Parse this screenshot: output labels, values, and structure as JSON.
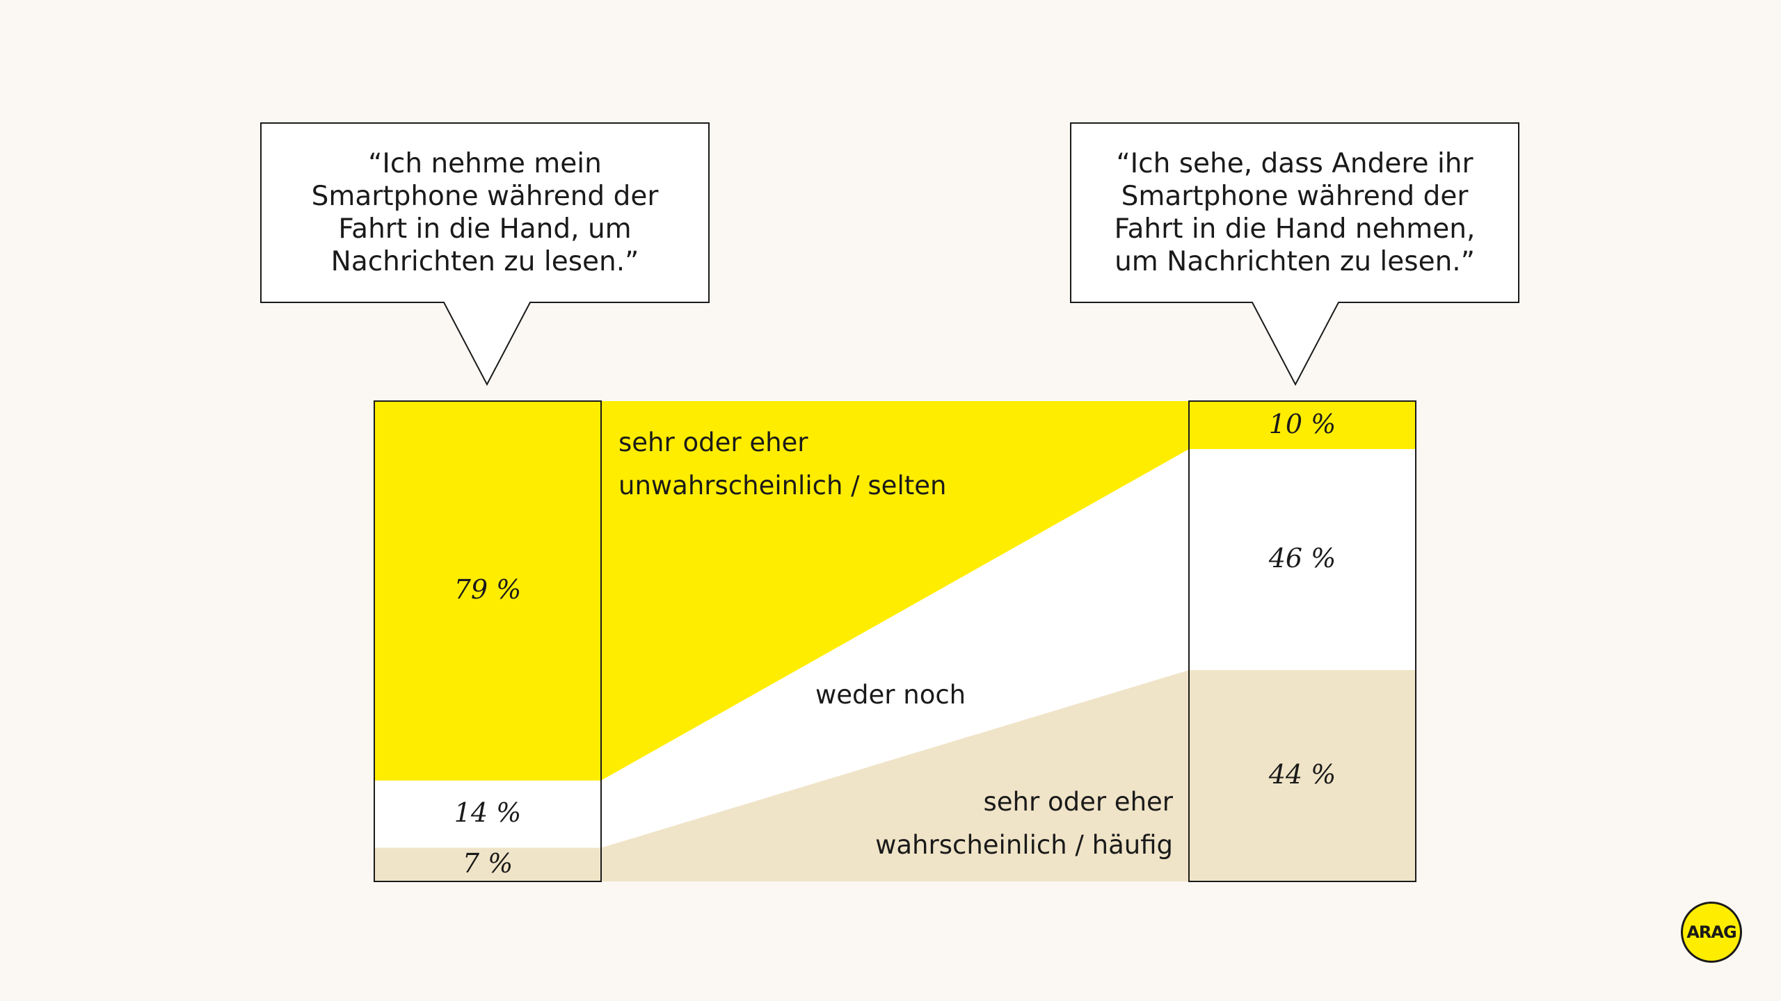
{
  "quotes": {
    "left": "“Ich nehme mein Smartphone während der Fahrt in die Hand, um Nachrichten zu lesen.”",
    "right": "“Ich sehe, dass Andere ihr Smartphone während der Fahrt in die Hand nehmen, um Nachrichten zu lesen.”"
  },
  "categories_text": {
    "top": [
      "sehr oder eher",
      "unwahrscheinlich / selten"
    ],
    "middle": "weder noch",
    "bottom": [
      "sehr oder eher",
      "wahrscheinlich / häufig"
    ]
  },
  "colors": {
    "background": "#fbf8f3",
    "yellow": "#ffed00",
    "white": "#ffffff",
    "beige": "#f0e4c8",
    "ink": "#1a1a1a"
  },
  "logo": {
    "text": "ARAG"
  },
  "chart_data": {
    "type": "bar",
    "stacked": true,
    "normalized": true,
    "categories": [
      "“Ich nehme mein Smartphone während der Fahrt in die Hand, um Nachrichten zu lesen.”",
      "“Ich sehe, dass Andere ihr Smartphone während der Fahrt in die Hand nehmen, um Nachrichten zu lesen.”"
    ],
    "series": [
      {
        "name": "sehr oder eher unwahrscheinlich / selten",
        "values": [
          79,
          10
        ],
        "labels": [
          "79 %",
          "10 %"
        ],
        "color": "#ffed00"
      },
      {
        "name": "weder noch",
        "values": [
          14,
          46
        ],
        "labels": [
          "14 %",
          "46 %"
        ],
        "color": "#ffffff"
      },
      {
        "name": "sehr oder eher wahrscheinlich / häufig",
        "values": [
          7,
          44
        ],
        "labels": [
          "7 %",
          "44 %"
        ],
        "color": "#f0e4c8"
      }
    ],
    "ylim": [
      0,
      100
    ],
    "unit": "%",
    "title": "",
    "xlabel": "",
    "ylabel": ""
  }
}
